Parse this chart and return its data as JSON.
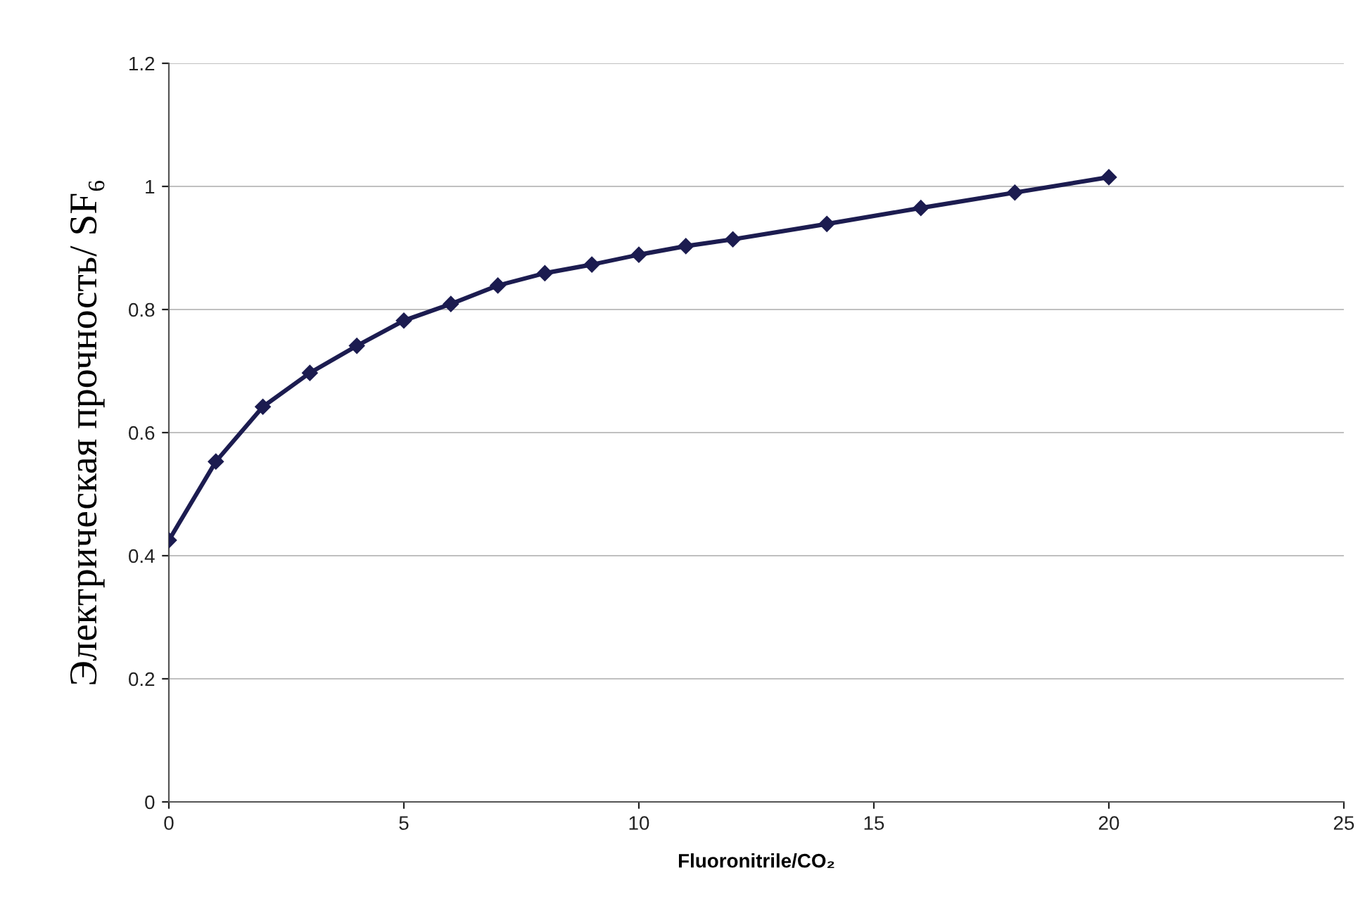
{
  "chart_data": {
    "type": "line",
    "xlabel": "Fluoronitrile/CO₂",
    "ylabel": "Электрическая прочность/ SF₆",
    "series": [
      {
        "color": "#1c1c50",
        "x": [
          0,
          1,
          2,
          3,
          4,
          5,
          6,
          7,
          8,
          9,
          10,
          11,
          12,
          14,
          16,
          18,
          20
        ],
        "values": [
          0.425,
          0.553,
          0.642,
          0.697,
          0.741,
          0.782,
          0.809,
          0.839,
          0.859,
          0.873,
          0.889,
          0.903,
          0.914,
          0.939,
          0.965,
          0.99,
          1.015
        ]
      }
    ],
    "xlim": [
      0,
      25
    ],
    "xticks": [
      0,
      5,
      10,
      15,
      20,
      25
    ],
    "ylim": [
      0,
      1.2
    ],
    "yticks": [
      0,
      0.2,
      0.4,
      0.6,
      0.8,
      1,
      1.2
    ],
    "grid": "y",
    "marker": "diamond",
    "line_style": "solid"
  }
}
